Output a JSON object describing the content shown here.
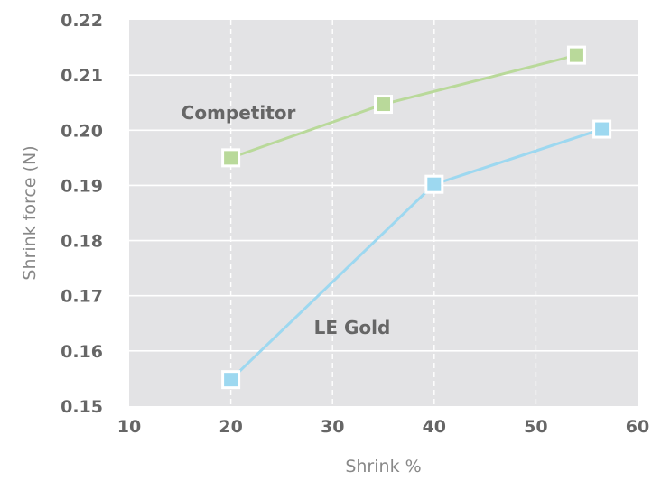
{
  "chart_data": {
    "type": "line",
    "title": "",
    "xlabel": "Shrink %",
    "ylabel": "Shrink force (N)",
    "xlim": [
      10,
      60
    ],
    "ylim": [
      0.15,
      0.22
    ],
    "x_ticks": [
      "10",
      "20",
      "30",
      "40",
      "50",
      "60"
    ],
    "y_ticks": [
      "0.15",
      "0.16",
      "0.17",
      "0.18",
      "0.19",
      "0.20",
      "0.21",
      "0.22"
    ],
    "grid": true,
    "legend": "none",
    "series": [
      {
        "name": "Competitor",
        "color": "#b9d99a",
        "points": [
          {
            "x": 20,
            "y": 0.195
          },
          {
            "x": 35,
            "y": 0.2047
          },
          {
            "x": 54,
            "y": 0.2136
          }
        ]
      },
      {
        "name": "LE Gold",
        "color": "#9dd8f0",
        "points": [
          {
            "x": 20,
            "y": 0.1548
          },
          {
            "x": 40,
            "y": 0.1902
          },
          {
            "x": 56.5,
            "y": 0.2002
          }
        ]
      }
    ],
    "colors": {
      "plot_background": "#e3e3e5",
      "grid": "#ffffff",
      "text": "#666666",
      "axis_title": "#888888"
    }
  }
}
